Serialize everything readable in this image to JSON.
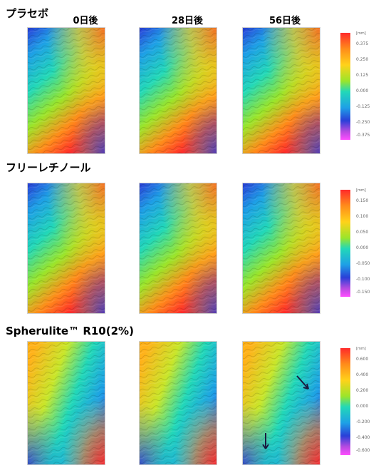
{
  "columns": [
    "0日後",
    "28日後",
    "56日後"
  ],
  "sections": [
    {
      "title": "プラセボ",
      "unit": "[mm]",
      "scale": [
        "0.375",
        "0.250",
        "0.125",
        "0.000",
        "-0.125",
        "-0.250",
        "-0.375"
      ]
    },
    {
      "title": "フリーレチノール",
      "unit": "[mm]",
      "scale": [
        "0.150",
        "0.100",
        "0.050",
        "0.000",
        "-0.050",
        "-0.100",
        "-0.150"
      ]
    },
    {
      "title": "Spherulite™ R10(2%)",
      "unit": "[mm]",
      "scale": [
        "0.600",
        "0.400",
        "0.200",
        "0.000",
        "-0.200",
        "-0.400",
        "-0.600"
      ]
    }
  ],
  "colors": {
    "rainbow": [
      "#ff2a2a",
      "#ff8c1a",
      "#ffd21a",
      "#9be52a",
      "#22d8b8",
      "#1ea0e6",
      "#2a3fd8",
      "#b44ae0",
      "#ff4dff"
    ]
  }
}
